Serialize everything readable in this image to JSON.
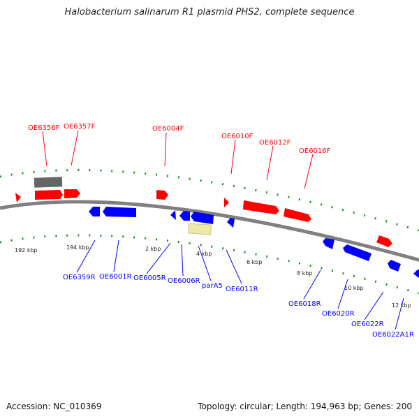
{
  "title": "Halobacterium salinarum R1 plasmid PHS2, complete sequence",
  "accession": "Accession: NC_010369",
  "summary": "Topology: circular; Length: 194,963 bp; Genes: 200",
  "colors": {
    "forward": "#ff0000",
    "reverse": "#0000ff",
    "backbone": "#808080",
    "ticks": "#228b22",
    "other": "#666666",
    "pseudo": "#eee8aa"
  },
  "forward_genes": [
    "OE6356F",
    "OE6357F",
    "OE6004F",
    "OE6010F",
    "OE6012F",
    "OE6016F"
  ],
  "reverse_genes": [
    "OE6359R",
    "OE6001R",
    "OE6005R",
    "OE6006R",
    "parA5",
    "OE6011R",
    "OE6018R",
    "OE6020R",
    "OE6022R",
    "OE6022A1R"
  ],
  "kbp_labels": [
    "192 kbp",
    "194 kbp",
    "2 kbp",
    "4 kbp",
    "6 kbp",
    "8 kbp",
    "10 kbp",
    "12 kbp"
  ]
}
